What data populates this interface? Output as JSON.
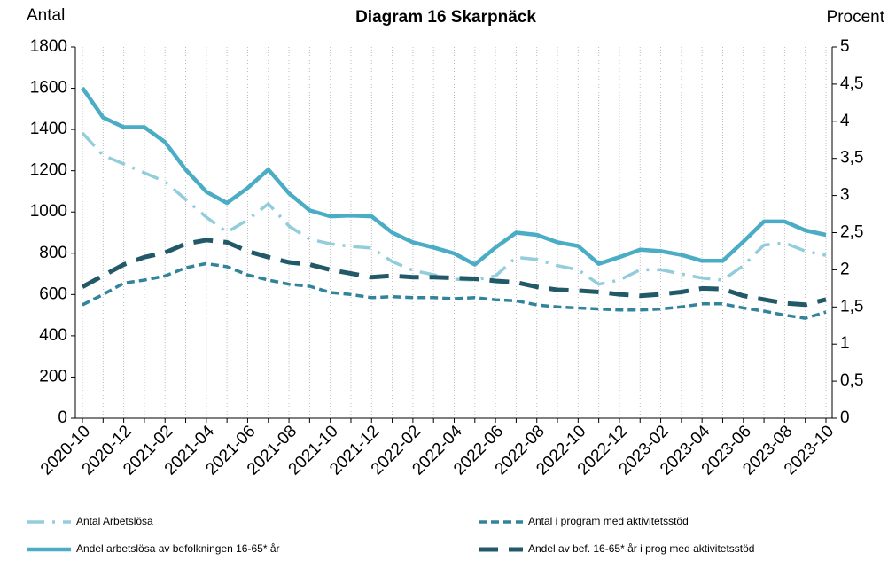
{
  "chart_data": {
    "type": "line",
    "title": "Diagram 16 Skarpnäck",
    "y_label": "Antal",
    "y2_label": "Procent",
    "categories": [
      "2020-10",
      null,
      "2020-12",
      null,
      "2021-02",
      null,
      "2021-04",
      null,
      "2021-06",
      null,
      "2021-08",
      null,
      "2021-10",
      null,
      "2021-12",
      null,
      "2022-02",
      null,
      "2022-04",
      null,
      "2022-06",
      null,
      "2022-08",
      null,
      "2022-10",
      null,
      "2022-12",
      null,
      "2023-02",
      null,
      "2023-04",
      null,
      "2023-06",
      null,
      "2023-08",
      null,
      "2023-10"
    ],
    "series": [
      {
        "name": "Antal Arbetslösa",
        "color": "#92cddc",
        "dash": "dash-dot",
        "axis": "y",
        "values": [
          1383,
          1275,
          1233,
          1190,
          1147,
          1061,
          975,
          902,
          962,
          1040,
          932,
          868,
          846,
          833,
          825,
          760,
          717,
          696,
          674,
          670,
          690,
          780,
          770,
          740,
          720,
          650,
          670,
          720,
          720,
          700,
          680,
          670,
          740,
          840,
          850,
          810,
          790
        ]
      },
      {
        "name": "Antal i program med aktivitetsstöd",
        "color": "#31849b",
        "dash": "dash",
        "axis": "y",
        "values": [
          550,
          600,
          655,
          670,
          690,
          730,
          750,
          735,
          695,
          670,
          650,
          640,
          610,
          600,
          585,
          590,
          585,
          585,
          580,
          585,
          575,
          570,
          550,
          540,
          535,
          530,
          525,
          525,
          530,
          540,
          555,
          555,
          535,
          520,
          500,
          485,
          515
        ]
      },
      {
        "name": "Andel arbetslösa av befolkningen 16-65* år",
        "color": "#4bacc6",
        "dash": "solid",
        "axis": "y2",
        "values": [
          4.45,
          4.05,
          3.92,
          3.92,
          3.72,
          3.35,
          3.05,
          2.9,
          3.1,
          3.35,
          3.03,
          2.8,
          2.72,
          2.73,
          2.72,
          2.5,
          2.37,
          2.3,
          2.22,
          2.07,
          2.3,
          2.5,
          2.47,
          2.37,
          2.32,
          2.08,
          2.17,
          2.27,
          2.25,
          2.2,
          2.12,
          2.12,
          2.38,
          2.65,
          2.65,
          2.53,
          2.47
        ]
      },
      {
        "name": "Andel av bef. 16-65* år i prog med aktivitetsstöd",
        "color": "#215968",
        "dash": "long-dash",
        "axis": "y2",
        "values": [
          1.77,
          1.92,
          2.07,
          2.17,
          2.23,
          2.35,
          2.4,
          2.37,
          2.25,
          2.17,
          2.1,
          2.07,
          2.0,
          1.95,
          1.9,
          1.92,
          1.9,
          1.9,
          1.89,
          1.88,
          1.85,
          1.83,
          1.77,
          1.73,
          1.72,
          1.7,
          1.67,
          1.65,
          1.67,
          1.7,
          1.75,
          1.74,
          1.65,
          1.6,
          1.55,
          1.53,
          1.6
        ]
      }
    ],
    "ylim": [
      0,
      1800
    ],
    "yticks": [
      0,
      200,
      400,
      600,
      800,
      1000,
      1200,
      1400,
      1600,
      1800
    ],
    "y2lim": [
      0,
      5
    ],
    "y2ticks": [
      0,
      {
        "value": 0.5,
        "label": "0,5"
      },
      1,
      {
        "value": 1.5,
        "label": "1,5"
      },
      2,
      {
        "value": 2.5,
        "label": "2,5"
      },
      3,
      {
        "value": 3.5,
        "label": "3,5"
      },
      4,
      {
        "value": 4.5,
        "label": "4,5"
      },
      5
    ],
    "grid": true
  }
}
